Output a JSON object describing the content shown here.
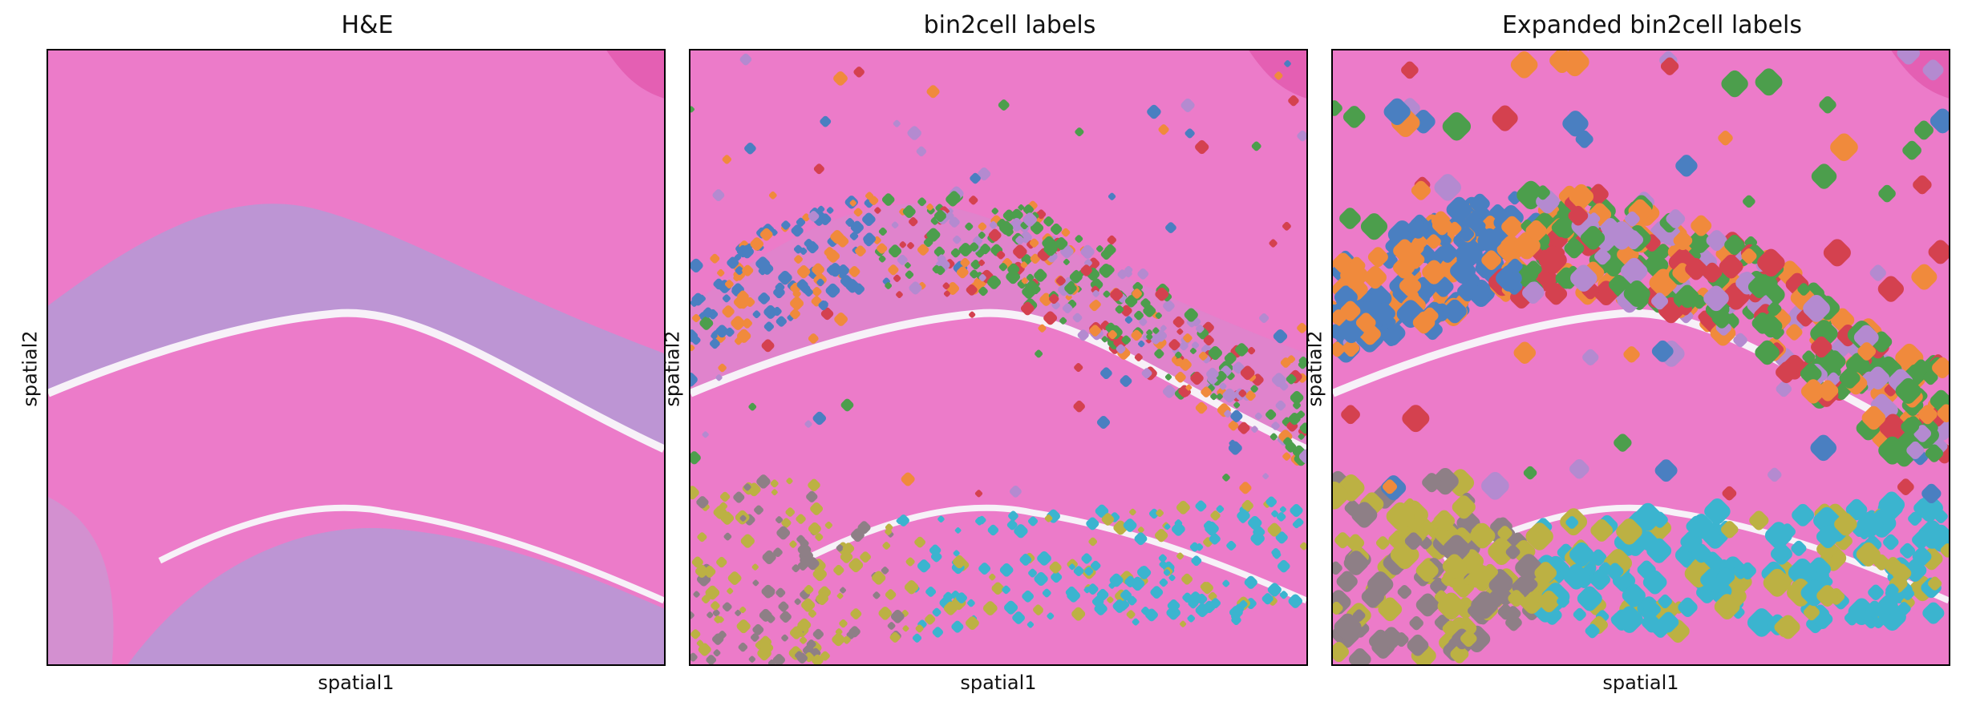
{
  "panels": [
    {
      "title": "H&E",
      "xlabel": "spatial1",
      "ylabel": "spatial2"
    },
    {
      "title": "bin2cell labels",
      "xlabel": "spatial1",
      "ylabel": "spatial2"
    },
    {
      "title": "Expanded bin2cell labels",
      "xlabel": "spatial1",
      "ylabel": "spatial2"
    }
  ],
  "colors": {
    "tissue_bg": "#ec7bc9",
    "cell_layer": "#b59ad6",
    "gap": "#f7f1f8",
    "label_palette": [
      "#4a7fc1",
      "#f08a3c",
      "#4c9e4c",
      "#d4414f",
      "#b48ad0",
      "#8e7f86",
      "#bcb143",
      "#3bb4cf"
    ]
  }
}
